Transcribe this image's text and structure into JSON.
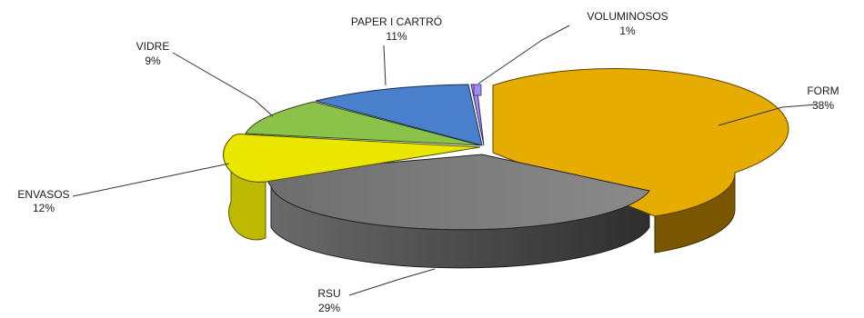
{
  "chart_data": {
    "type": "pie",
    "style": "3d-exploded",
    "title": "",
    "legend": "none",
    "slices": [
      {
        "label": "FORM",
        "percent_label": "38%",
        "value": 38,
        "color": "#E7AC00",
        "side_color": "#7A5600"
      },
      {
        "label": "RSU",
        "percent_label": "29%",
        "value": 29,
        "color": "#7A7A7A",
        "side_color": "#4C4C4C"
      },
      {
        "label": "ENVASOS",
        "percent_label": "12%",
        "value": 12,
        "color": "#EAE600",
        "side_color": "#BDB900"
      },
      {
        "label": "VIDRE",
        "percent_label": "9%",
        "value": 9,
        "color": "#8BC34A",
        "side_color": "#5E8E2E"
      },
      {
        "label": "PAPER I CARTRÓ",
        "percent_label": "11%",
        "value": 11,
        "color": "#4A7FCC",
        "side_color": "#2F5A99"
      },
      {
        "label": "VOLUMINOSOS",
        "percent_label": "1%",
        "value": 1,
        "color": "#9E8CF0",
        "side_color": "#6E5FC0"
      }
    ]
  }
}
